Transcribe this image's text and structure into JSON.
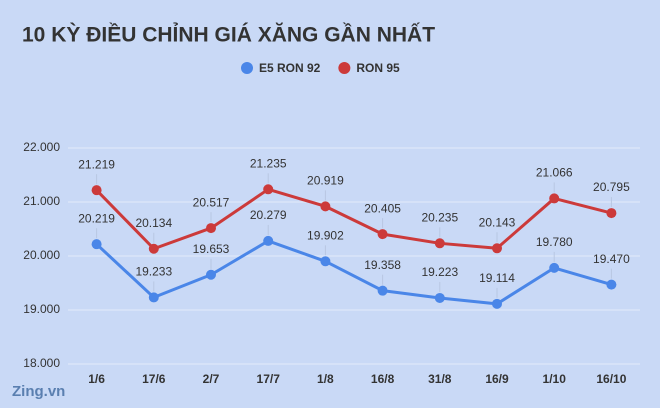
{
  "chart_data": {
    "type": "line",
    "title": "10 KỲ ĐIỀU CHỈNH GIÁ XĂNG GẦN NHẤT",
    "categories": [
      "1/6",
      "17/6",
      "2/7",
      "17/7",
      "1/8",
      "16/8",
      "31/8",
      "16/9",
      "1/10",
      "16/10"
    ],
    "series": [
      {
        "name": "E5 RON 92",
        "color": "#4a86e8",
        "values": [
          20219,
          19233,
          19653,
          20279,
          19902,
          19358,
          19223,
          19114,
          19780,
          19470
        ],
        "value_labels": [
          "20.219",
          "19.233",
          "19.653",
          "20.279",
          "19.902",
          "19.358",
          "19.223",
          "19.114",
          "19.780",
          "19.470"
        ]
      },
      {
        "name": "RON 95",
        "color": "#cc3a3a",
        "values": [
          21219,
          20134,
          20517,
          21235,
          20919,
          20405,
          20235,
          20143,
          21066,
          20795
        ],
        "value_labels": [
          "21.219",
          "20.134",
          "20.517",
          "21.235",
          "20.919",
          "20.405",
          "20.235",
          "20.143",
          "21.066",
          "20.795"
        ]
      }
    ],
    "ylim": [
      18000,
      22000
    ],
    "yticks": [
      {
        "value": 18000,
        "label": "18.000"
      },
      {
        "value": 19000,
        "label": "19.000"
      },
      {
        "value": 20000,
        "label": "20.000"
      },
      {
        "value": 21000,
        "label": "21.000"
      },
      {
        "value": 22000,
        "label": "22.000"
      }
    ],
    "grid": true,
    "legend_position": "top",
    "watermark": "Zing.vn"
  }
}
